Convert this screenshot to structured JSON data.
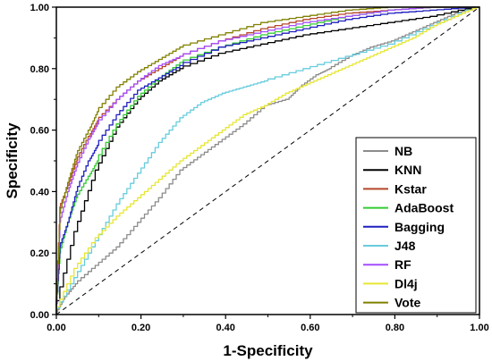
{
  "chart_data": {
    "type": "line",
    "title": "",
    "xlabel": "1-Specificity",
    "ylabel": "Specificity",
    "xlim": [
      0,
      1
    ],
    "ylim": [
      0,
      1
    ],
    "xticks": [
      "0.00",
      "0.20",
      "0.40",
      "0.60",
      "0.80",
      "1.00"
    ],
    "yticks": [
      "0.00",
      "0.20",
      "0.40",
      "0.60",
      "0.80",
      "1.00"
    ],
    "grid": false,
    "legend_position": "bottom-right",
    "diagonal_reference": true,
    "series": [
      {
        "name": "NB",
        "color": "#8c8c8c",
        "x": [
          0,
          0.02,
          0.05,
          0.1,
          0.15,
          0.2,
          0.25,
          0.3,
          0.35,
          0.4,
          0.45,
          0.5,
          0.55,
          0.58,
          0.62,
          0.65,
          0.7,
          0.75,
          0.8,
          0.85,
          0.9,
          0.95,
          1.0
        ],
        "y": [
          0,
          0.05,
          0.1,
          0.16,
          0.22,
          0.3,
          0.38,
          0.47,
          0.52,
          0.57,
          0.62,
          0.68,
          0.7,
          0.74,
          0.78,
          0.8,
          0.84,
          0.87,
          0.89,
          0.92,
          0.95,
          0.98,
          1.0
        ]
      },
      {
        "name": "KNN",
        "color": "#000000",
        "x": [
          0,
          0.05,
          0.1,
          0.15,
          0.2,
          0.25,
          0.3,
          0.4,
          0.5,
          0.6,
          0.7,
          0.8,
          0.9,
          1.0
        ],
        "y": [
          0,
          0.27,
          0.47,
          0.61,
          0.7,
          0.76,
          0.8,
          0.85,
          0.88,
          0.91,
          0.93,
          0.95,
          0.97,
          1.0
        ]
      },
      {
        "name": "Kstar",
        "color": "#b5462a",
        "x": [
          0,
          0.01,
          0.03,
          0.05,
          0.08,
          0.1,
          0.15,
          0.2,
          0.25,
          0.3,
          0.4,
          0.5,
          0.6,
          0.7,
          0.8,
          0.9,
          1.0
        ],
        "y": [
          0,
          0.35,
          0.42,
          0.5,
          0.58,
          0.63,
          0.7,
          0.76,
          0.8,
          0.84,
          0.89,
          0.93,
          0.96,
          0.98,
          0.99,
          1.0,
          1.0
        ]
      },
      {
        "name": "AdaBoost",
        "color": "#33cc33",
        "x": [
          0,
          0.01,
          0.03,
          0.05,
          0.08,
          0.1,
          0.15,
          0.2,
          0.25,
          0.3,
          0.4,
          0.5,
          0.6,
          0.7,
          0.8,
          0.9,
          1.0
        ],
        "y": [
          0,
          0.2,
          0.3,
          0.38,
          0.45,
          0.5,
          0.62,
          0.71,
          0.77,
          0.82,
          0.87,
          0.91,
          0.94,
          0.97,
          0.99,
          1.0,
          1.0
        ]
      },
      {
        "name": "Bagging",
        "color": "#1f1fbf",
        "x": [
          0,
          0.01,
          0.03,
          0.05,
          0.08,
          0.1,
          0.15,
          0.2,
          0.25,
          0.3,
          0.4,
          0.5,
          0.6,
          0.7,
          0.8,
          0.9,
          1.0
        ],
        "y": [
          0,
          0.22,
          0.3,
          0.4,
          0.5,
          0.55,
          0.65,
          0.73,
          0.77,
          0.81,
          0.87,
          0.9,
          0.93,
          0.96,
          0.98,
          0.99,
          1.0
        ]
      },
      {
        "name": "J48",
        "color": "#66ccdd",
        "x": [
          0,
          0.05,
          0.1,
          0.15,
          0.2,
          0.25,
          0.3,
          0.35,
          0.4,
          0.45,
          0.5,
          0.6,
          0.7,
          0.8,
          0.9,
          1.0
        ],
        "y": [
          0,
          0.12,
          0.24,
          0.36,
          0.46,
          0.56,
          0.64,
          0.69,
          0.72,
          0.74,
          0.76,
          0.8,
          0.84,
          0.88,
          0.94,
          1.0
        ]
      },
      {
        "name": "RF",
        "color": "#a64dff",
        "x": [
          0,
          0.01,
          0.03,
          0.05,
          0.08,
          0.1,
          0.15,
          0.2,
          0.25,
          0.3,
          0.4,
          0.5,
          0.6,
          0.7,
          0.8,
          0.9,
          1.0
        ],
        "y": [
          0,
          0.3,
          0.4,
          0.48,
          0.57,
          0.62,
          0.7,
          0.76,
          0.81,
          0.84,
          0.89,
          0.92,
          0.95,
          0.97,
          0.99,
          1.0,
          1.0
        ]
      },
      {
        "name": "Dl4j",
        "color": "#e6e633",
        "x": [
          0,
          0.05,
          0.1,
          0.15,
          0.2,
          0.25,
          0.3,
          0.35,
          0.4,
          0.45,
          0.5,
          0.55,
          0.6,
          0.65,
          0.7,
          0.75,
          0.8,
          0.85,
          0.9,
          0.95,
          1.0
        ],
        "y": [
          0,
          0.15,
          0.25,
          0.32,
          0.38,
          0.44,
          0.5,
          0.55,
          0.6,
          0.65,
          0.68,
          0.72,
          0.75,
          0.78,
          0.81,
          0.84,
          0.87,
          0.9,
          0.94,
          0.97,
          1.0
        ]
      },
      {
        "name": "Vote",
        "color": "#808000",
        "x": [
          0,
          0.01,
          0.03,
          0.05,
          0.08,
          0.1,
          0.15,
          0.2,
          0.25,
          0.3,
          0.4,
          0.5,
          0.6,
          0.7,
          0.8,
          0.9,
          1.0
        ],
        "y": [
          0,
          0.33,
          0.43,
          0.52,
          0.6,
          0.66,
          0.74,
          0.79,
          0.83,
          0.87,
          0.91,
          0.95,
          0.97,
          0.99,
          1.0,
          1.0,
          1.0
        ]
      }
    ]
  }
}
